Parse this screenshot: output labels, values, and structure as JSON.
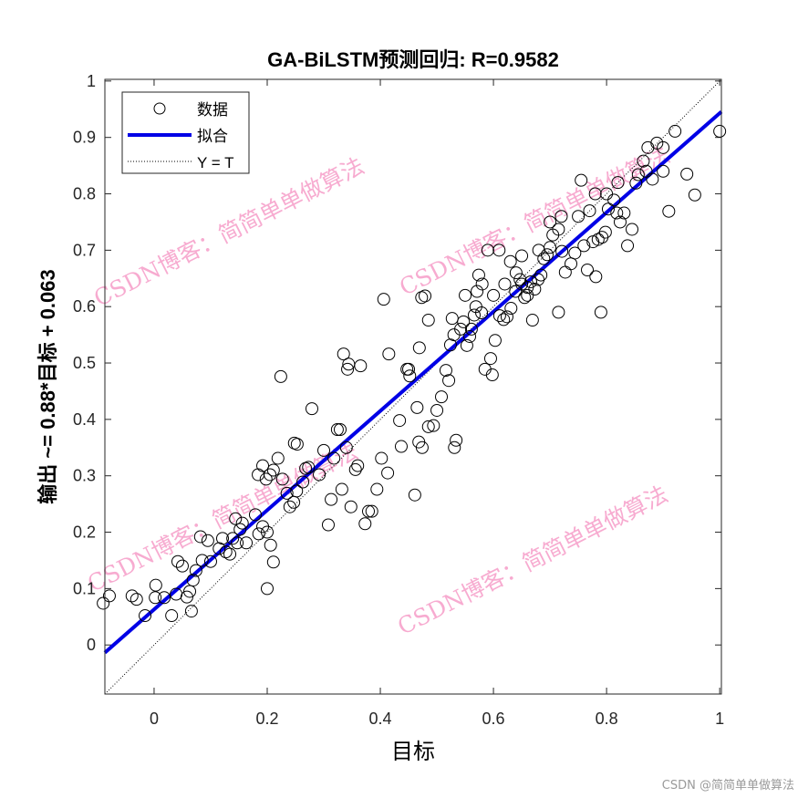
{
  "chart_data": {
    "type": "scatter",
    "title": "GA-BiLSTM预测回归: R=0.9582",
    "xlabel": "目标",
    "ylabel": "输出 ~= 0.88*目标 + 0.063",
    "xlim": [
      -0.087,
      1.003
    ],
    "ylim": [
      -0.087,
      1.003
    ],
    "xticks": [
      "0",
      "0.2",
      "0.4",
      "0.6",
      "0.8",
      "1"
    ],
    "xtick_values": [
      0,
      0.2,
      0.4,
      0.6,
      0.8,
      1
    ],
    "yticks": [
      "0",
      "0.1",
      "0.2",
      "0.3",
      "0.4",
      "0.5",
      "0.6",
      "0.7",
      "0.8",
      "0.9",
      "1"
    ],
    "ytick_values": [
      0,
      0.1,
      0.2,
      0.3,
      0.4,
      0.5,
      0.6,
      0.7,
      0.8,
      0.9,
      1
    ],
    "legend": {
      "placement": "top-left",
      "entries": [
        "数据",
        "拟合",
        "Y = T"
      ]
    },
    "fit": {
      "slope": 0.88,
      "intercept": 0.063,
      "color": "#0000e6"
    },
    "identity_line": {
      "slope": 1,
      "intercept": 0
    },
    "marker_color": "#000000",
    "points": [
      [
        -0.09,
        0.074
      ],
      [
        -0.079,
        0.087
      ],
      [
        -0.039,
        0.087
      ],
      [
        -0.031,
        0.081
      ],
      [
        -0.016,
        0.052
      ],
      [
        0.002,
        0.084
      ],
      [
        0.003,
        0.106
      ],
      [
        0.018,
        0.084
      ],
      [
        0.031,
        0.052
      ],
      [
        0.039,
        0.09
      ],
      [
        0.042,
        0.148
      ],
      [
        0.05,
        0.14
      ],
      [
        0.058,
        0.085
      ],
      [
        0.066,
        0.06
      ],
      [
        0.063,
        0.095
      ],
      [
        0.069,
        0.115
      ],
      [
        0.074,
        0.132
      ],
      [
        0.085,
        0.15
      ],
      [
        0.082,
        0.192
      ],
      [
        0.095,
        0.185
      ],
      [
        0.1,
        0.148
      ],
      [
        0.115,
        0.171
      ],
      [
        0.121,
        0.189
      ],
      [
        0.127,
        0.165
      ],
      [
        0.134,
        0.161
      ],
      [
        0.139,
        0.189
      ],
      [
        0.147,
        0.181
      ],
      [
        0.152,
        0.205
      ],
      [
        0.156,
        0.216
      ],
      [
        0.163,
        0.181
      ],
      [
        0.144,
        0.224
      ],
      [
        0.179,
        0.231
      ],
      [
        0.185,
        0.197
      ],
      [
        0.192,
        0.21
      ],
      [
        0.2,
        0.2
      ],
      [
        0.206,
        0.177
      ],
      [
        0.211,
        0.147
      ],
      [
        0.2,
        0.1
      ],
      [
        0.184,
        0.302
      ],
      [
        0.192,
        0.318
      ],
      [
        0.198,
        0.294
      ],
      [
        0.205,
        0.302
      ],
      [
        0.211,
        0.31
      ],
      [
        0.219,
        0.331
      ],
      [
        0.227,
        0.294
      ],
      [
        0.235,
        0.269
      ],
      [
        0.24,
        0.245
      ],
      [
        0.247,
        0.253
      ],
      [
        0.252,
        0.273
      ],
      [
        0.224,
        0.476
      ],
      [
        0.248,
        0.358
      ],
      [
        0.253,
        0.356
      ],
      [
        0.263,
        0.289
      ],
      [
        0.268,
        0.313
      ],
      [
        0.273,
        0.315
      ],
      [
        0.279,
        0.419
      ],
      [
        0.292,
        0.302
      ],
      [
        0.3,
        0.345
      ],
      [
        0.308,
        0.213
      ],
      [
        0.313,
        0.258
      ],
      [
        0.318,
        0.331
      ],
      [
        0.324,
        0.382
      ],
      [
        0.329,
        0.382
      ],
      [
        0.332,
        0.276
      ],
      [
        0.335,
        0.516
      ],
      [
        0.342,
        0.489
      ],
      [
        0.344,
        0.498
      ],
      [
        0.34,
        0.35
      ],
      [
        0.348,
        0.245
      ],
      [
        0.36,
        0.318
      ],
      [
        0.365,
        0.495
      ],
      [
        0.373,
        0.215
      ],
      [
        0.379,
        0.237
      ],
      [
        0.385,
        0.237
      ],
      [
        0.394,
        0.276
      ],
      [
        0.356,
        0.311
      ],
      [
        0.402,
        0.331
      ],
      [
        0.406,
        0.613
      ],
      [
        0.413,
        0.305
      ],
      [
        0.415,
        0.516
      ],
      [
        0.434,
        0.398
      ],
      [
        0.437,
        0.352
      ],
      [
        0.447,
        0.489
      ],
      [
        0.45,
        0.489
      ],
      [
        0.452,
        0.477
      ],
      [
        0.461,
        0.266
      ],
      [
        0.465,
        0.421
      ],
      [
        0.469,
        0.527
      ],
      [
        0.473,
        0.616
      ],
      [
        0.479,
        0.619
      ],
      [
        0.485,
        0.576
      ],
      [
        0.468,
        0.36
      ],
      [
        0.474,
        0.35
      ],
      [
        0.485,
        0.387
      ],
      [
        0.494,
        0.389
      ],
      [
        0.5,
        0.416
      ],
      [
        0.508,
        0.44
      ],
      [
        0.516,
        0.487
      ],
      [
        0.521,
        0.469
      ],
      [
        0.524,
        0.532
      ],
      [
        0.527,
        0.579
      ],
      [
        0.531,
        0.35
      ],
      [
        0.534,
        0.363
      ],
      [
        0.542,
        0.56
      ],
      [
        0.547,
        0.573
      ],
      [
        0.553,
        0.531
      ],
      [
        0.558,
        0.547
      ],
      [
        0.561,
        0.56
      ],
      [
        0.566,
        0.585
      ],
      [
        0.569,
        0.6
      ],
      [
        0.571,
        0.627
      ],
      [
        0.574,
        0.656
      ],
      [
        0.579,
        0.589
      ],
      [
        0.585,
        0.489
      ],
      [
        0.595,
        0.508
      ],
      [
        0.598,
        0.479
      ],
      [
        0.603,
        0.54
      ],
      [
        0.611,
        0.584
      ],
      [
        0.618,
        0.577
      ],
      [
        0.624,
        0.582
      ],
      [
        0.631,
        0.597
      ],
      [
        0.639,
        0.627
      ],
      [
        0.647,
        0.648
      ],
      [
        0.655,
        0.616
      ],
      [
        0.66,
        0.634
      ],
      [
        0.666,
        0.644
      ],
      [
        0.669,
        0.576
      ],
      [
        0.673,
        0.631
      ],
      [
        0.679,
        0.648
      ],
      [
        0.684,
        0.656
      ],
      [
        0.689,
        0.685
      ],
      [
        0.695,
        0.692
      ],
      [
        0.7,
        0.705
      ],
      [
        0.705,
        0.727
      ],
      [
        0.715,
        0.737
      ],
      [
        0.721,
        0.698
      ],
      [
        0.727,
        0.661
      ],
      [
        0.737,
        0.676
      ],
      [
        0.744,
        0.695
      ],
      [
        0.755,
        0.824
      ],
      [
        0.76,
        0.708
      ],
      [
        0.766,
        0.665
      ],
      [
        0.776,
        0.715
      ],
      [
        0.781,
        0.653
      ],
      [
        0.785,
        0.719
      ],
      [
        0.792,
        0.723
      ],
      [
        0.798,
        0.732
      ],
      [
        0.803,
        0.773
      ],
      [
        0.813,
        0.789
      ],
      [
        0.818,
        0.766
      ],
      [
        0.824,
        0.75
      ],
      [
        0.831,
        0.766
      ],
      [
        0.837,
        0.708
      ],
      [
        0.845,
        0.737
      ],
      [
        0.852,
        0.819
      ],
      [
        0.856,
        0.834
      ],
      [
        0.865,
        0.858
      ],
      [
        0.873,
        0.882
      ],
      [
        0.881,
        0.826
      ],
      [
        0.889,
        0.89
      ],
      [
        0.9,
        0.882
      ],
      [
        0.91,
        0.769
      ],
      [
        0.921,
        0.911
      ],
      [
        0.942,
        0.835
      ],
      [
        0.956,
        0.798
      ],
      [
        1.0,
        0.911
      ],
      [
        0.79,
        0.59
      ],
      [
        0.715,
        0.59
      ],
      [
        0.62,
        0.64
      ],
      [
        0.64,
        0.66
      ],
      [
        0.66,
        0.62
      ],
      [
        0.68,
        0.7
      ],
      [
        0.63,
        0.68
      ],
      [
        0.65,
        0.69
      ],
      [
        0.6,
        0.62
      ],
      [
        0.58,
        0.64
      ],
      [
        0.7,
        0.75
      ],
      [
        0.72,
        0.76
      ],
      [
        0.78,
        0.8
      ],
      [
        0.8,
        0.8
      ],
      [
        0.82,
        0.82
      ],
      [
        0.77,
        0.77
      ],
      [
        0.75,
        0.76
      ],
      [
        0.87,
        0.84
      ],
      [
        0.9,
        0.84
      ],
      [
        0.61,
        0.7
      ],
      [
        0.59,
        0.7
      ],
      [
        0.55,
        0.62
      ],
      [
        0.53,
        0.55
      ],
      [
        0.65,
        0.64
      ]
    ]
  },
  "watermark": "CSDN博客：简简单单做算法",
  "credit": "CSDN @简简单单做算法"
}
